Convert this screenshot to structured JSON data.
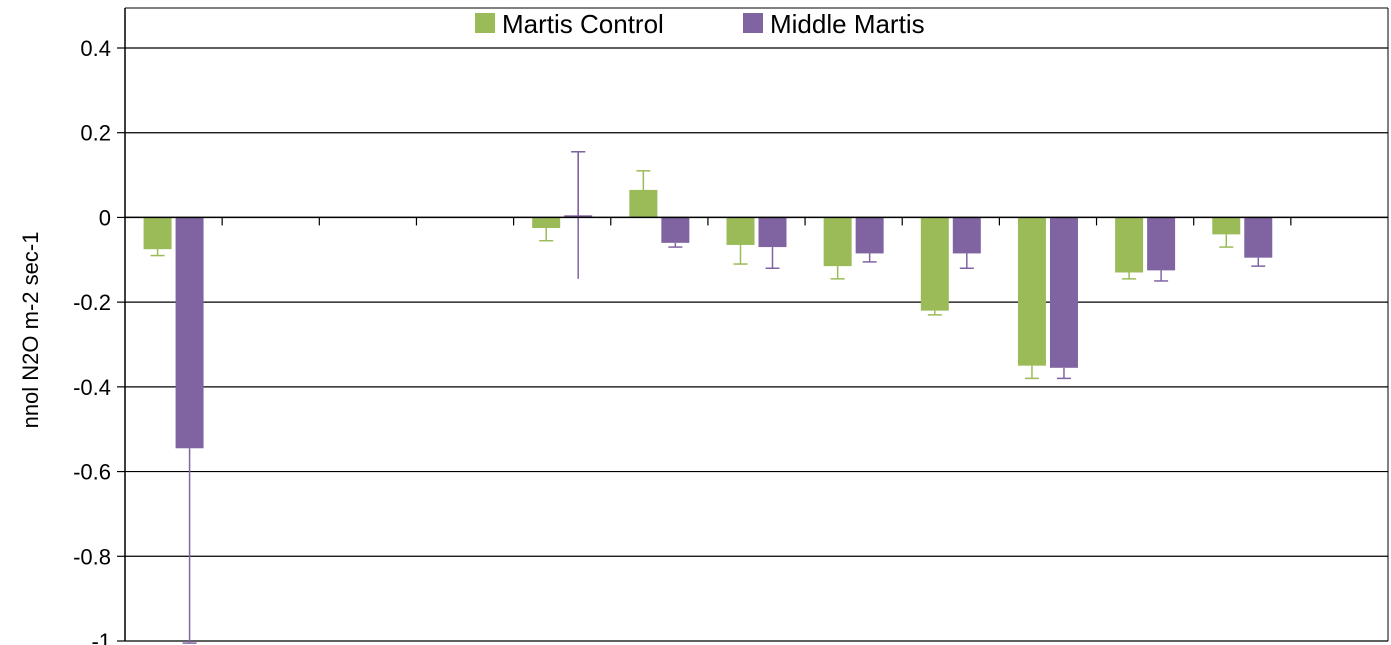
{
  "chart_data": {
    "type": "bar",
    "title": "",
    "xlabel": "",
    "ylabel": "nnol N2O m-2 sec-1",
    "ylim": [
      -1,
      0.4
    ],
    "yticks": [
      0.4,
      0.2,
      0,
      -0.2,
      -0.4,
      -0.6,
      -0.8,
      -1
    ],
    "ytick_labels": [
      "0.4",
      "0.2",
      "0",
      "-0.2",
      "-0.4",
      "-0.6",
      "-0.8",
      "-1"
    ],
    "grid": true,
    "legend_position": "top",
    "category_count": 13,
    "series": [
      {
        "name": "Martis Control",
        "color": "#9BBB59",
        "values": [
          -0.075,
          null,
          null,
          null,
          -0.025,
          0.065,
          -0.065,
          -0.115,
          -0.22,
          -0.35,
          -0.13,
          -0.04,
          null
        ],
        "errors": [
          0.015,
          null,
          null,
          null,
          0.03,
          0.045,
          0.045,
          0.03,
          0.01,
          0.03,
          0.015,
          0.03,
          null
        ]
      },
      {
        "name": "Middle Martis",
        "color": "#8064A2",
        "values": [
          -0.545,
          null,
          null,
          null,
          0.005,
          -0.06,
          -0.07,
          -0.085,
          -0.085,
          -0.355,
          -0.125,
          -0.095,
          null
        ],
        "errors": [
          0.46,
          null,
          null,
          null,
          0.15,
          0.01,
          0.05,
          0.02,
          0.035,
          0.025,
          0.025,
          0.02,
          null
        ]
      }
    ]
  }
}
